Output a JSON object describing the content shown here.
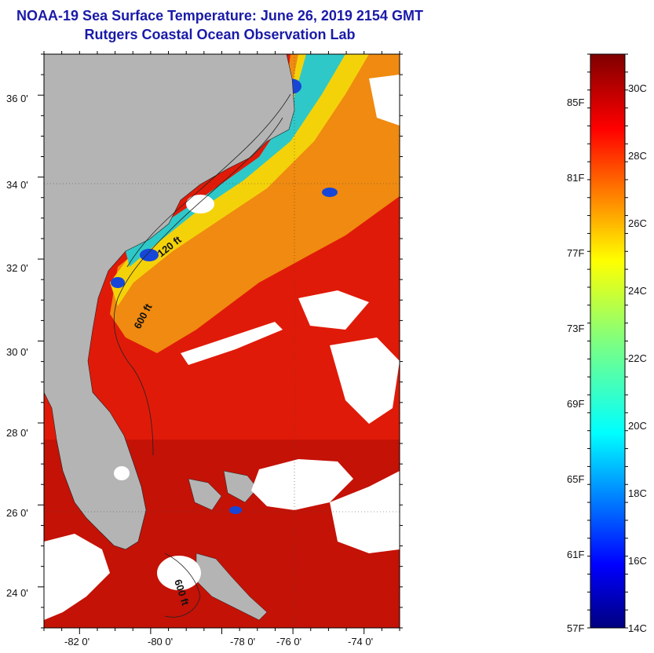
{
  "header": {
    "title": "NOAA-19 Sea Surface Temperature:  June 26, 2019 2154 GMT",
    "subtitle": "Rutgers Coastal Ocean Observation Lab"
  },
  "map": {
    "lat_range": [
      23.1,
      37.1
    ],
    "lon_range": [
      -83.0,
      -73.0
    ],
    "lat_ticks": [
      "36 0'",
      "34 0'",
      "32 0'",
      "30 0'",
      "28 0'",
      "26 0'",
      "24 0'"
    ],
    "lon_ticks": [
      "-82 0'",
      "-80 0'",
      "-78 0'",
      "-76 0'",
      "-74 0'"
    ],
    "contour_labels": [
      "120 ft",
      "600 ft",
      "600 ft"
    ],
    "colors": {
      "land": "#b4b4b4",
      "cloud": "#ffffff",
      "warm_water": "#e01a08",
      "cool_water": "#f4d20a",
      "cold_patch": "#1646d8"
    }
  },
  "colorbar": {
    "fahrenheit_labels": [
      "85F",
      "81F",
      "77F",
      "73F",
      "69F",
      "65F",
      "61F",
      "57F"
    ],
    "celsius_labels": [
      "30C",
      "28C",
      "26C",
      "24C",
      "22C",
      "20C",
      "18C",
      "16C",
      "14C"
    ],
    "colormap": "jet"
  }
}
